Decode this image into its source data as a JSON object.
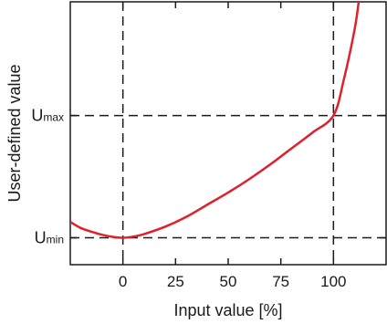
{
  "chart_data": {
    "type": "line",
    "title": "",
    "xlabel": "Input value [%]",
    "ylabel": "User-defined value",
    "xlim": [
      -25,
      125
    ],
    "ylim": [
      -0.22,
      1.93
    ],
    "x_ticks": [
      0,
      25,
      50,
      75,
      100
    ],
    "x_tick_labels": [
      "0",
      "25",
      "50",
      "75",
      "100"
    ],
    "y_ticks": [
      0,
      1
    ],
    "y_tick_labels": [
      {
        "main": "U",
        "sub": "min"
      },
      {
        "main": "U",
        "sub": "max"
      }
    ],
    "grid": false,
    "reference_lines": {
      "x": [
        0,
        100
      ],
      "y": [
        0,
        1
      ]
    },
    "series": [
      {
        "color": "#e0202a",
        "x": [
          -25,
          -20,
          -15,
          -10,
          -5,
          0,
          5,
          10,
          20,
          30,
          40,
          50,
          60,
          70,
          80,
          90,
          100,
          105,
          110,
          112
        ],
        "y": [
          0.13,
          0.08,
          0.05,
          0.025,
          0.008,
          0.0,
          0.01,
          0.03,
          0.09,
          0.17,
          0.27,
          0.37,
          0.48,
          0.6,
          0.73,
          0.86,
          1.0,
          1.3,
          1.7,
          1.93
        ]
      }
    ]
  }
}
